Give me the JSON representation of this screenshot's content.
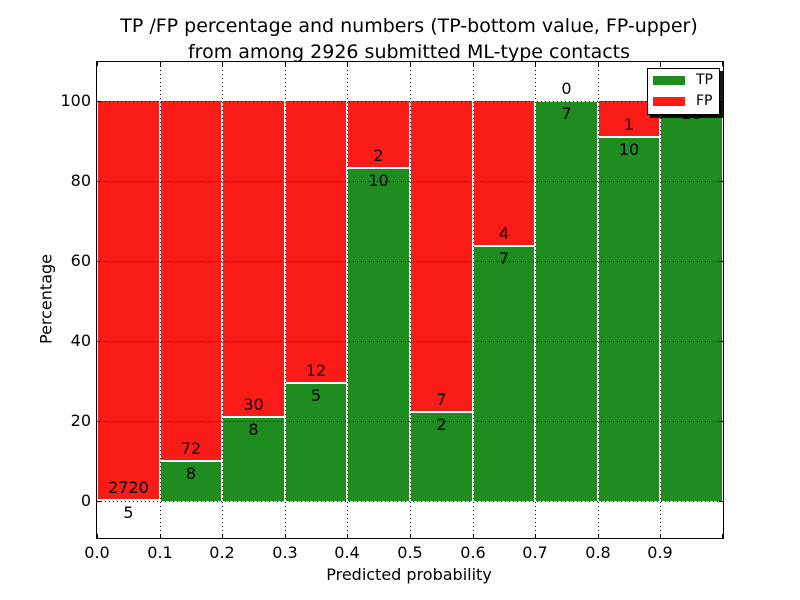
{
  "figure": {
    "title_line1": "TP /FP percentage and numbers (TP-bottom value, FP-upper)",
    "title_line2": "from among 2926 submitted ML-type contacts",
    "xlabel": "Predicted probability",
    "ylabel": "Percentage"
  },
  "legend": {
    "position": "upper right",
    "items": [
      {
        "label": "TP",
        "color": "#1e8c1e"
      },
      {
        "label": "FP",
        "color": "#fb1b17"
      }
    ]
  },
  "colors": {
    "tp": "#1e8c1e",
    "fp": "#fb1b17",
    "grid": "#000000",
    "text": "#000000"
  },
  "chart_data": {
    "type": "bar",
    "stacked": true,
    "normalized_to_percent": true,
    "title": "TP /FP percentage and numbers (TP-bottom value, FP-upper) from among 2926 submitted ML-type contacts",
    "xlabel": "Predicted probability",
    "ylabel": "Percentage",
    "total_contacts": 2926,
    "x_tick_labels": [
      "0.0",
      "0.1",
      "0.2",
      "0.3",
      "0.4",
      "0.5",
      "0.6",
      "0.7",
      "0.8",
      "0.9"
    ],
    "y_ticks": [
      0,
      20,
      40,
      60,
      80,
      100
    ],
    "ylim": [
      -9.5,
      109.5
    ],
    "xlim": [
      0.0,
      1.0
    ],
    "grid": "dotted",
    "legend_position": "upper right",
    "categories": [
      "0.0-0.1",
      "0.1-0.2",
      "0.2-0.3",
      "0.3-0.4",
      "0.4-0.5",
      "0.5-0.6",
      "0.6-0.7",
      "0.7-0.8",
      "0.8-0.9",
      "0.9-1.0"
    ],
    "series": [
      {
        "name": "TP",
        "values": [
          5,
          8,
          8,
          5,
          10,
          2,
          7,
          7,
          10,
          16
        ]
      },
      {
        "name": "FP",
        "values": [
          2720,
          72,
          30,
          12,
          2,
          7,
          4,
          0,
          1,
          0
        ]
      }
    ],
    "bins": [
      {
        "range": "0.0-0.1",
        "tp": 5,
        "fp": 2720,
        "tp_pct": 0.18,
        "tp_label": "5",
        "fp_label": "2720",
        "fp_label_visible": true
      },
      {
        "range": "0.1-0.2",
        "tp": 8,
        "fp": 72,
        "tp_pct": 10.0,
        "tp_label": "8",
        "fp_label": "72",
        "fp_label_visible": true
      },
      {
        "range": "0.2-0.3",
        "tp": 8,
        "fp": 30,
        "tp_pct": 21.05,
        "tp_label": "8",
        "fp_label": "30",
        "fp_label_visible": true
      },
      {
        "range": "0.3-0.4",
        "tp": 5,
        "fp": 12,
        "tp_pct": 29.41,
        "tp_label": "5",
        "fp_label": "12",
        "fp_label_visible": true
      },
      {
        "range": "0.4-0.5",
        "tp": 10,
        "fp": 2,
        "tp_pct": 83.33,
        "tp_label": "10",
        "fp_label": "2",
        "fp_label_visible": true
      },
      {
        "range": "0.5-0.6",
        "tp": 2,
        "fp": 7,
        "tp_pct": 22.22,
        "tp_label": "2",
        "fp_label": "7",
        "fp_label_visible": true
      },
      {
        "range": "0.6-0.7",
        "tp": 7,
        "fp": 4,
        "tp_pct": 63.64,
        "tp_label": "7",
        "fp_label": "4",
        "fp_label_visible": true
      },
      {
        "range": "0.7-0.8",
        "tp": 7,
        "fp": 0,
        "tp_pct": 100.0,
        "tp_label": "7",
        "fp_label": "0",
        "fp_label_visible": true
      },
      {
        "range": "0.8-0.9",
        "tp": 10,
        "fp": 1,
        "tp_pct": 90.91,
        "tp_label": "10",
        "fp_label": "1",
        "fp_label_visible": true
      },
      {
        "range": "0.9-1.0",
        "tp": 16,
        "fp": 0,
        "tp_pct": 100.0,
        "tp_label": "16",
        "fp_label": "",
        "fp_label_visible": false
      }
    ]
  }
}
